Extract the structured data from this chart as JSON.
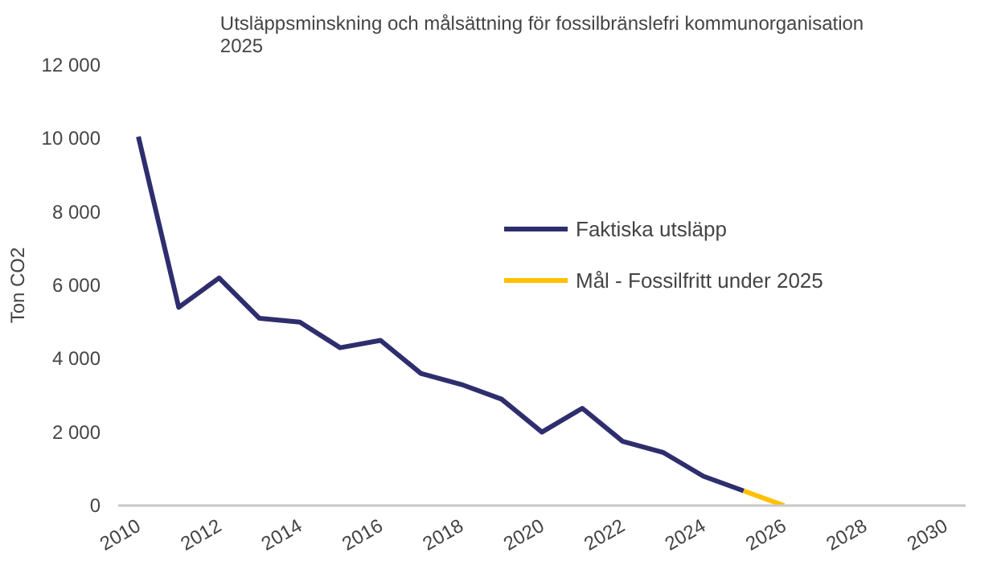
{
  "chart_data": {
    "type": "line",
    "title": "Utsläppsminskning och målsättning för fossilbränslefri kommunorganisation\n2025",
    "ylabel": "Ton CO2",
    "series": [
      {
        "name": "Faktiska utsläpp",
        "color": "#2e2e6e",
        "x": [
          2010,
          2011,
          2012,
          2013,
          2014,
          2015,
          2016,
          2017,
          2018,
          2019,
          2020,
          2021,
          2022,
          2023,
          2024,
          2025
        ],
        "values": [
          10050,
          5400,
          6200,
          5100,
          5000,
          4300,
          4500,
          3600,
          3300,
          2900,
          2000,
          2650,
          1750,
          1450,
          800,
          400
        ]
      },
      {
        "name": "Mål - Fossilfritt under 2025",
        "color": "#ffc000",
        "x": [
          2025,
          2026
        ],
        "values": [
          400,
          0
        ]
      }
    ],
    "xlim": [
      2009.5,
      2030.5
    ],
    "xticks": [
      2010,
      2012,
      2014,
      2016,
      2018,
      2020,
      2022,
      2024,
      2026,
      2028,
      2030
    ],
    "ylim": [
      0,
      12000
    ],
    "yticks": [
      {
        "value": 0,
        "label": "0"
      },
      {
        "value": 2000,
        "label": "2 000"
      },
      {
        "value": 4000,
        "label": "4 000"
      },
      {
        "value": 6000,
        "label": "6 000"
      },
      {
        "value": 8000,
        "label": "8 000"
      },
      {
        "value": 10000,
        "label": "10 000"
      },
      {
        "value": 12000,
        "label": "12 000"
      }
    ],
    "grid": false,
    "legend": "right",
    "line_style": "solid"
  }
}
